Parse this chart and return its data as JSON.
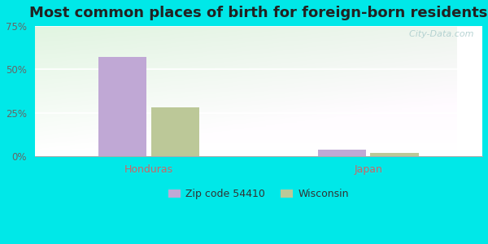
{
  "title": "Most common places of birth for foreign-born residents",
  "categories": [
    "Honduras",
    "Japan"
  ],
  "series": [
    {
      "name": "Zip code 54410",
      "values": [
        57,
        4
      ],
      "color": "#c0a8d5"
    },
    {
      "name": "Wisconsin",
      "values": [
        28,
        2
      ],
      "color": "#bcc898"
    }
  ],
  "ylim": [
    0,
    75
  ],
  "yticks": [
    0,
    25,
    50,
    75
  ],
  "ytick_labels": [
    "0%",
    "25%",
    "50%",
    "75%"
  ],
  "outer_bg": "#00e8e8",
  "title_fontsize": 13,
  "axis_label_color": "#cc6666",
  "watermark": "  City-Data.com",
  "bar_width": 0.55,
  "group_positions": [
    1.0,
    3.5
  ],
  "figsize": [
    6.0,
    3.0
  ],
  "dpi": 100
}
